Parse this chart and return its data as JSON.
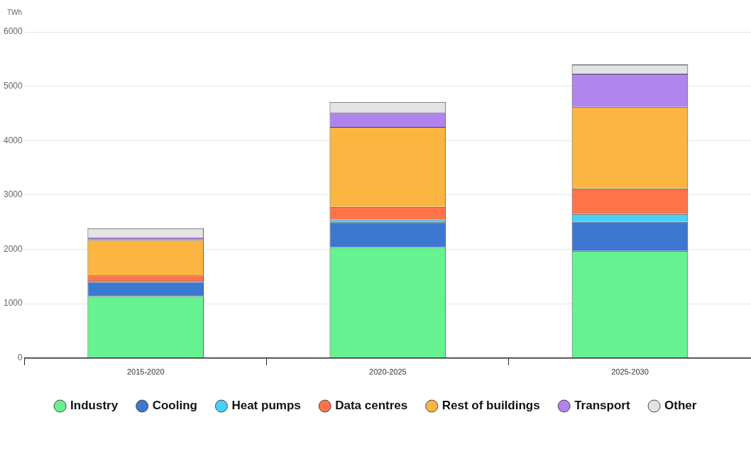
{
  "chart_data": {
    "type": "bar",
    "stacked": true,
    "ylabel": "TWh",
    "categories": [
      "2015-2020",
      "2020-2025",
      "2025-2030"
    ],
    "ylim": [
      0,
      6000
    ],
    "yticks": [
      0,
      1000,
      2000,
      3000,
      4000,
      5000,
      6000
    ],
    "grid": "y",
    "legend": "bottom",
    "series": [
      {
        "name": "Industry",
        "color": "#66f290",
        "values": [
          1140,
          2040,
          1970
        ]
      },
      {
        "name": "Cooling",
        "color": "#3c78d0",
        "values": [
          260,
          460,
          540
        ]
      },
      {
        "name": "Heat pumps",
        "color": "#46d2f8",
        "values": [
          20,
          50,
          140
        ]
      },
      {
        "name": "Data centres",
        "color": "#ff7349",
        "values": [
          100,
          230,
          470
        ]
      },
      {
        "name": "Rest of buildings",
        "color": "#fdb541",
        "values": [
          650,
          1470,
          1500
        ]
      },
      {
        "name": "Transport",
        "color": "#b084ec",
        "values": [
          50,
          270,
          610
        ]
      },
      {
        "name": "Other",
        "color": "#e3e3e3",
        "values": [
          170,
          190,
          170
        ]
      }
    ]
  }
}
